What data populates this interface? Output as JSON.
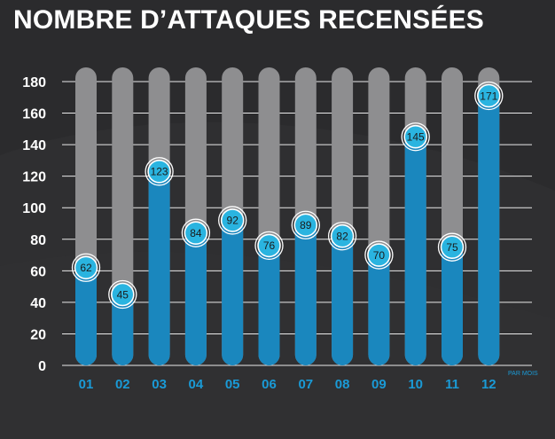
{
  "title": "NOMBRE D’ATTAQUES RECENSÉES",
  "x_note": "PAR MOIS",
  "colors": {
    "background": "#2b2b2d",
    "bar_track": "#8e8e90",
    "bar_value": "#1a87be",
    "label_fill": "#2ab4e0",
    "x_tick": "#1a9ad6",
    "grid": "#ffffff"
  },
  "chart_data": {
    "type": "bar",
    "title": "NOMBRE D’ATTAQUES RECENSÉES",
    "xlabel": "PAR MOIS",
    "ylabel": "",
    "categories": [
      "01",
      "02",
      "03",
      "04",
      "05",
      "06",
      "07",
      "08",
      "09",
      "10",
      "11",
      "12"
    ],
    "values": [
      62,
      45,
      123,
      84,
      92,
      76,
      89,
      82,
      70,
      145,
      75,
      171
    ],
    "data_labels": [
      "62",
      "45",
      "123",
      "84",
      "92",
      "76",
      "89",
      "82",
      "70",
      "145",
      "75",
      "171"
    ],
    "ylim": [
      0,
      180
    ],
    "yticks": [
      0,
      20,
      40,
      60,
      80,
      100,
      120,
      140,
      160,
      180
    ],
    "ytick_labels": [
      "0",
      "20",
      "40",
      "60",
      "80",
      "100",
      "120",
      "140",
      "160",
      "180"
    ],
    "grid": true,
    "legend": "none"
  }
}
